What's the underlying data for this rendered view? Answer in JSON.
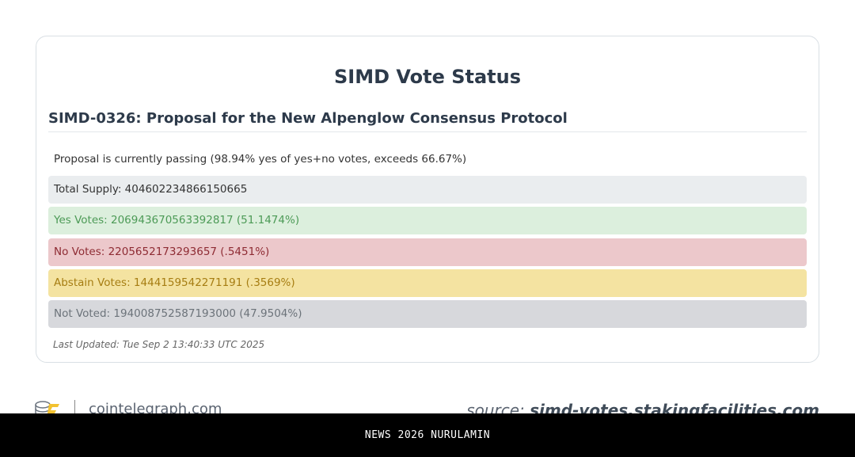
{
  "page": {
    "title": "SIMD Vote Status",
    "proposal_title": "SIMD-0326: Proposal for the New Alpenglow Consensus Protocol",
    "status_text": "Proposal is currently passing (98.94% yes of yes+no votes, exceeds 66.67%)",
    "rows": {
      "total_supply": "Total Supply: 404602234866150665",
      "yes_votes": "Yes Votes: 206943670563392817 (51.1474%)",
      "no_votes": "No Votes: 2205652173293657 (.5451%)",
      "abstain_votes": "Abstain Votes: 1444159542271191 (.3569%)",
      "not_voted": "Not Voted: 194008752587193000 (47.9504%)"
    },
    "last_updated": "Last Updated: Tue Sep 2 13:40:33 UTC 2025"
  },
  "footer": {
    "logo_icon": "cointelegraph-logo-icon",
    "site": "cointelegraph.com",
    "source_label": "source:",
    "source_site": "simd-votes.stakingfacilities.com"
  },
  "banner": {
    "text": "NEWS 2026 NURULAMIN"
  },
  "colors": {
    "yes": "#4c9a56",
    "no": "#8e2b33",
    "abstain": "#a67d12",
    "not_voted": "#6c737a"
  }
}
